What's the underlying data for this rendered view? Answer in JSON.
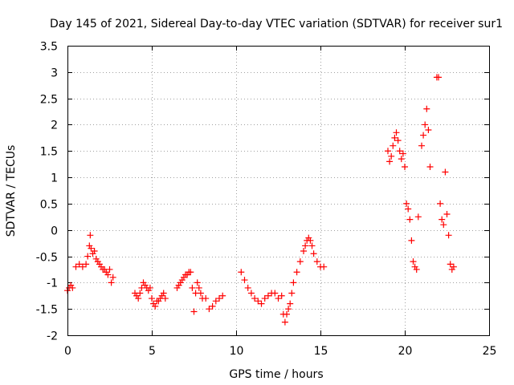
{
  "chart_data": {
    "type": "scatter",
    "title": "Day 145 of 2021, Sidereal Day-to-day VTEC variation (SDTVAR) for receiver sur1",
    "xlabel": "GPS time / hours",
    "ylabel": "SDTVAR / TECUs",
    "xlim": [
      0,
      25
    ],
    "ylim": [
      -2,
      3.5
    ],
    "xticks": [
      0,
      5,
      10,
      15,
      20,
      25
    ],
    "xtick_labels": [
      "0",
      "5",
      "10",
      "15",
      "20",
      "25"
    ],
    "yticks": [
      -2,
      -1.5,
      -1,
      -0.5,
      0,
      0.5,
      1,
      1.5,
      2,
      2.5,
      3,
      3.5
    ],
    "ytick_labels": [
      "-2",
      "-1.5",
      "-1",
      "-0.5",
      "0",
      "0.5",
      "1",
      "1.5",
      "2",
      "2.5",
      "3",
      "3.5"
    ],
    "grid": true,
    "marker": "+",
    "color": "#ff0000",
    "series": [
      {
        "name": "sur1",
        "x": [
          0.0,
          0.1,
          0.2,
          0.3,
          0.5,
          0.7,
          0.9,
          1.1,
          1.2,
          1.3,
          1.35,
          1.4,
          1.5,
          1.6,
          1.7,
          1.8,
          1.9,
          2.0,
          2.1,
          2.2,
          2.3,
          2.4,
          2.5,
          2.6,
          2.7,
          4.0,
          4.1,
          4.2,
          4.3,
          4.4,
          4.5,
          4.6,
          4.7,
          4.8,
          4.9,
          5.0,
          5.1,
          5.2,
          5.3,
          5.4,
          5.5,
          5.6,
          5.7,
          5.8,
          6.5,
          6.6,
          6.7,
          6.8,
          6.9,
          7.0,
          7.1,
          7.2,
          7.3,
          7.4,
          7.5,
          7.6,
          7.7,
          7.8,
          7.9,
          8.0,
          8.2,
          8.4,
          8.6,
          8.8,
          9.0,
          9.2,
          10.3,
          10.5,
          10.7,
          10.9,
          11.1,
          11.3,
          11.5,
          11.7,
          11.9,
          12.1,
          12.3,
          12.5,
          12.7,
          12.8,
          12.9,
          13.0,
          13.1,
          13.2,
          13.3,
          13.4,
          13.6,
          13.8,
          14.0,
          14.1,
          14.2,
          14.3,
          14.4,
          14.5,
          14.6,
          14.8,
          15.0,
          15.2,
          19.0,
          19.1,
          19.2,
          19.3,
          19.4,
          19.5,
          19.6,
          19.7,
          19.8,
          19.9,
          20.0,
          20.1,
          20.2,
          20.3,
          20.4,
          20.5,
          20.6,
          20.7,
          20.8,
          21.0,
          21.1,
          21.2,
          21.3,
          21.4,
          21.5,
          21.9,
          22.0,
          22.1,
          22.2,
          22.3,
          22.4,
          22.5,
          22.6,
          22.7,
          22.8,
          22.9
        ],
        "y": [
          -1.15,
          -1.1,
          -1.05,
          -1.1,
          -0.7,
          -0.65,
          -0.7,
          -0.65,
          -0.5,
          -0.3,
          -0.1,
          -0.35,
          -0.45,
          -0.4,
          -0.55,
          -0.6,
          -0.65,
          -0.7,
          -0.75,
          -0.75,
          -0.8,
          -0.85,
          -0.75,
          -1.0,
          -0.9,
          -1.2,
          -1.25,
          -1.3,
          -1.2,
          -1.1,
          -1.0,
          -1.05,
          -1.1,
          -1.15,
          -1.1,
          -1.3,
          -1.4,
          -1.45,
          -1.35,
          -1.35,
          -1.3,
          -1.25,
          -1.2,
          -1.3,
          -1.1,
          -1.05,
          -1.0,
          -0.95,
          -0.9,
          -0.85,
          -0.85,
          -0.8,
          -0.8,
          -1.1,
          -1.55,
          -1.2,
          -1.0,
          -1.1,
          -1.2,
          -1.3,
          -1.3,
          -1.5,
          -1.45,
          -1.35,
          -1.3,
          -1.25,
          -0.8,
          -0.95,
          -1.1,
          -1.2,
          -1.3,
          -1.35,
          -1.4,
          -1.3,
          -1.25,
          -1.2,
          -1.2,
          -1.3,
          -1.25,
          -1.6,
          -1.75,
          -1.6,
          -1.5,
          -1.4,
          -1.2,
          -1.0,
          -0.8,
          -0.6,
          -0.4,
          -0.3,
          -0.2,
          -0.15,
          -0.2,
          -0.3,
          -0.45,
          -0.6,
          -0.7,
          -0.7,
          1.5,
          1.3,
          1.4,
          1.6,
          1.75,
          1.85,
          1.7,
          1.5,
          1.35,
          1.45,
          1.2,
          0.5,
          0.4,
          0.2,
          -0.2,
          -0.6,
          -0.7,
          -0.75,
          0.25,
          1.6,
          1.8,
          2.0,
          2.3,
          1.9,
          1.2,
          2.9,
          2.9,
          0.5,
          0.2,
          0.1,
          1.1,
          0.3,
          -0.1,
          -0.65,
          -0.75,
          -0.7
        ]
      }
    ]
  }
}
